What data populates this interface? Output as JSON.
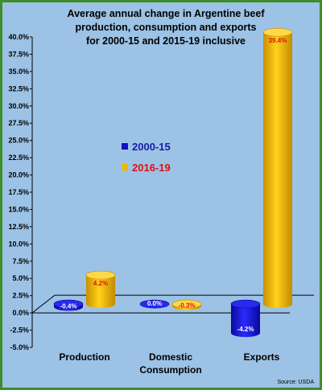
{
  "chart_data": {
    "type": "bar",
    "title_lines": [
      "Average annual change in Argentine beef",
      "production, consumption and exports",
      "for 2000-15 and 2015-19 inclusive"
    ],
    "categories": [
      [
        "Production"
      ],
      [
        "Domestic",
        "Consumption"
      ],
      [
        "Exports"
      ]
    ],
    "series": [
      {
        "name": "2000-15",
        "color": "#1010cc",
        "label_color": "#ffffff",
        "legend_text_color": "#1a1aa6",
        "values": [
          -0.4,
          0.0,
          -4.2
        ],
        "labels": [
          "-0.4%",
          "0.0%",
          "-4.2%"
        ]
      },
      {
        "name": "2016-19",
        "color": "#f0b800",
        "label_color": "#e01010",
        "legend_text_color": "#e01010",
        "values": [
          4.2,
          -0.3,
          39.4
        ],
        "labels": [
          "4.2%",
          "-0.3%",
          "39.4%"
        ]
      }
    ],
    "ylim": [
      -5,
      40
    ],
    "yticks": [
      {
        "v": 40,
        "label": "40.0%"
      },
      {
        "v": 37.5,
        "label": "37.5%"
      },
      {
        "v": 35,
        "label": "35.0%"
      },
      {
        "v": 32.5,
        "label": "32.5%"
      },
      {
        "v": 30,
        "label": "30.0%"
      },
      {
        "v": 27.5,
        "label": "27.5%"
      },
      {
        "v": 25,
        "label": "25.0%"
      },
      {
        "v": 22.5,
        "label": "22.5%"
      },
      {
        "v": 20,
        "label": "20.0%"
      },
      {
        "v": 17.5,
        "label": "17.5%"
      },
      {
        "v": 15,
        "label": "15.0%"
      },
      {
        "v": 12.5,
        "label": "12.5%"
      },
      {
        "v": 10,
        "label": "10.0%"
      },
      {
        "v": 7.5,
        "label": "7.5%"
      },
      {
        "v": 5,
        "label": "5.0%"
      },
      {
        "v": 2.5,
        "label": "2.5%"
      },
      {
        "v": 0,
        "label": "0.0%"
      },
      {
        "v": -2.5,
        "label": "-2.5%"
      },
      {
        "v": -5,
        "label": "-5.0%"
      }
    ],
    "grid": false,
    "legend_position": "center-left",
    "source": "Source: USDA"
  }
}
